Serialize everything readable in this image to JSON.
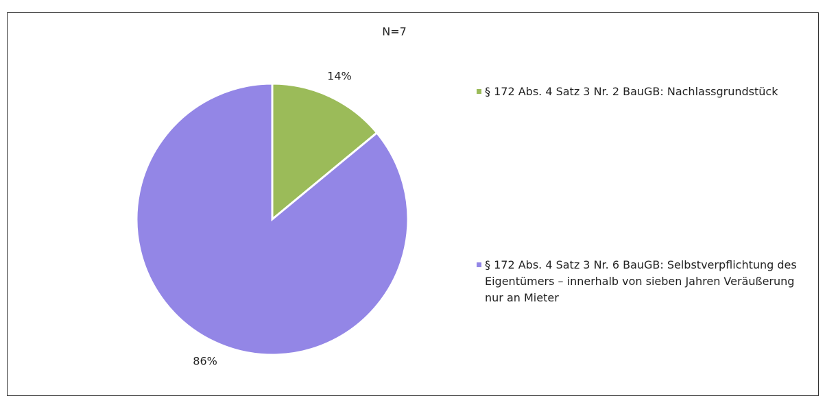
{
  "chart_data": {
    "type": "pie",
    "subtitle": "N=7",
    "categories": [
      "§ 172 Abs. 4 Satz 3 Nr. 2 BauGB: Nachlassgrundstück",
      "§ 172 Abs. 4 Satz 3 Nr. 6 BauGB: Selbstverpflichtung des Eigentümers – innerhalb von sieben Jahren Veräußerung nur an Mieter"
    ],
    "values": [
      14,
      86
    ],
    "value_labels": [
      "14%",
      "86%"
    ],
    "colors": [
      "#9bbb59",
      "#9386e6"
    ],
    "legend": "right"
  }
}
